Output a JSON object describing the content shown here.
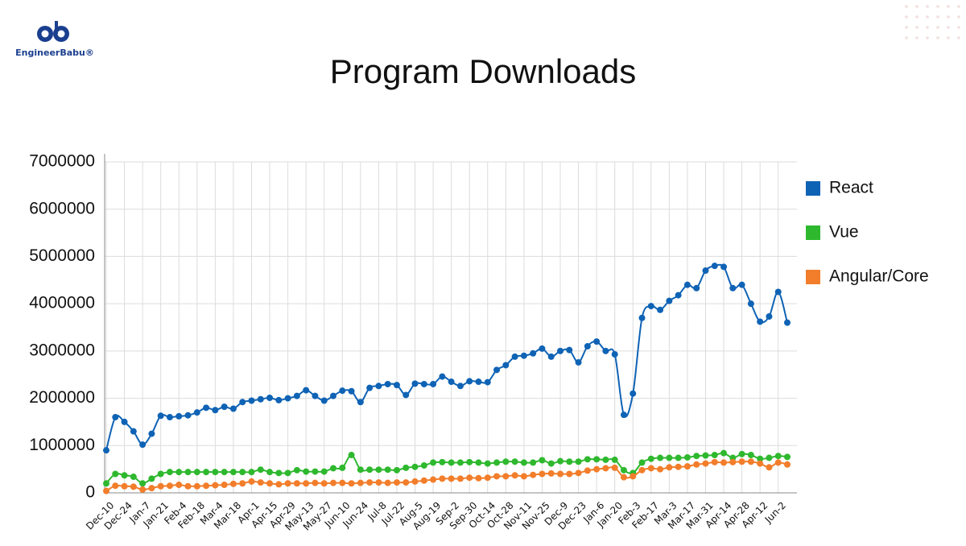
{
  "logo": "EngineerBabu®",
  "chart_data": {
    "type": "line",
    "title": "Program Downloads",
    "categories": [
      "Dec-10",
      null,
      "Dec-24",
      null,
      "Jan-7",
      null,
      "Jan-21",
      null,
      "Feb-4",
      null,
      "Feb-18",
      null,
      "Mar-4",
      null,
      "Mar-18",
      null,
      "Apr-1",
      null,
      "Apr-15",
      null,
      "Apr-29",
      null,
      "May-13",
      null,
      "May-27",
      null,
      "Jun-10",
      null,
      "Jun-24",
      null,
      "Jul-8",
      null,
      "Jul-22",
      null,
      "Aug-5",
      null,
      "Aug-19",
      null,
      "Sep-2",
      null,
      "Sep-30",
      null,
      "Oct-14",
      null,
      "Oct-28",
      null,
      "Nov-11",
      null,
      "Nov-25",
      null,
      "Dec-9",
      null,
      "Dec-23",
      null,
      "Jan-6",
      null,
      "Jan-20",
      null,
      "Feb-3",
      null,
      "Feb-17",
      null,
      "Mar-3",
      null,
      "Mar-17",
      null,
      "Mar-31",
      null,
      "Apr-14",
      null,
      "Apr-28",
      null,
      "Apr-12",
      null,
      "Jun-2",
      null
    ],
    "series": [
      {
        "name": "React",
        "color": "#0f63b5",
        "values": [
          900000,
          1600000,
          1500000,
          1300000,
          1020000,
          1250000,
          1630000,
          1600000,
          1620000,
          1640000,
          1700000,
          1800000,
          1750000,
          1820000,
          1780000,
          1920000,
          1950000,
          1980000,
          2010000,
          1960000,
          2000000,
          2050000,
          2170000,
          2050000,
          1950000,
          2050000,
          2160000,
          2150000,
          1920000,
          2220000,
          2260000,
          2300000,
          2280000,
          2070000,
          2310000,
          2300000,
          2300000,
          2460000,
          2350000,
          2260000,
          2360000,
          2350000,
          2340000,
          2600000,
          2700000,
          2880000,
          2900000,
          2950000,
          3050000,
          2880000,
          3000000,
          3020000,
          2760000,
          3100000,
          3200000,
          3000000,
          2930000,
          1650000,
          2100000,
          3700000,
          3950000,
          3870000,
          4060000,
          4180000,
          4400000,
          4330000,
          4700000,
          4800000,
          4780000,
          4330000,
          4400000,
          4000000,
          3620000,
          3730000,
          4250000,
          3600000
        ]
      },
      {
        "name": "Vue",
        "color": "#2eb82e",
        "values": [
          200000,
          400000,
          370000,
          340000,
          200000,
          300000,
          400000,
          440000,
          440000,
          440000,
          440000,
          440000,
          440000,
          440000,
          440000,
          440000,
          440000,
          490000,
          440000,
          420000,
          420000,
          480000,
          450000,
          450000,
          450000,
          520000,
          530000,
          800000,
          490000,
          490000,
          490000,
          490000,
          480000,
          530000,
          550000,
          580000,
          640000,
          650000,
          640000,
          640000,
          650000,
          640000,
          620000,
          640000,
          660000,
          660000,
          640000,
          640000,
          690000,
          620000,
          670000,
          660000,
          660000,
          710000,
          710000,
          700000,
          700000,
          480000,
          420000,
          640000,
          720000,
          740000,
          740000,
          740000,
          750000,
          780000,
          790000,
          800000,
          840000,
          740000,
          820000,
          800000,
          720000,
          740000,
          780000,
          760000
        ]
      },
      {
        "name": "Angular/Core",
        "color": "#f27d2a",
        "values": [
          40000,
          150000,
          140000,
          130000,
          70000,
          100000,
          140000,
          150000,
          170000,
          140000,
          140000,
          150000,
          160000,
          170000,
          190000,
          200000,
          240000,
          220000,
          200000,
          180000,
          200000,
          200000,
          200000,
          210000,
          200000,
          210000,
          210000,
          200000,
          210000,
          220000,
          220000,
          210000,
          220000,
          220000,
          240000,
          260000,
          280000,
          300000,
          300000,
          300000,
          320000,
          310000,
          320000,
          350000,
          350000,
          370000,
          350000,
          380000,
          400000,
          410000,
          400000,
          400000,
          420000,
          470000,
          500000,
          520000,
          530000,
          330000,
          350000,
          480000,
          520000,
          500000,
          540000,
          550000,
          560000,
          600000,
          620000,
          650000,
          640000,
          650000,
          660000,
          660000,
          620000,
          540000,
          640000,
          600000
        ]
      }
    ],
    "ylim": [
      0,
      7000000
    ],
    "yticks": [
      0,
      1000000,
      2000000,
      3000000,
      4000000,
      5000000,
      6000000,
      7000000
    ],
    "grid": true,
    "legend": "right"
  }
}
